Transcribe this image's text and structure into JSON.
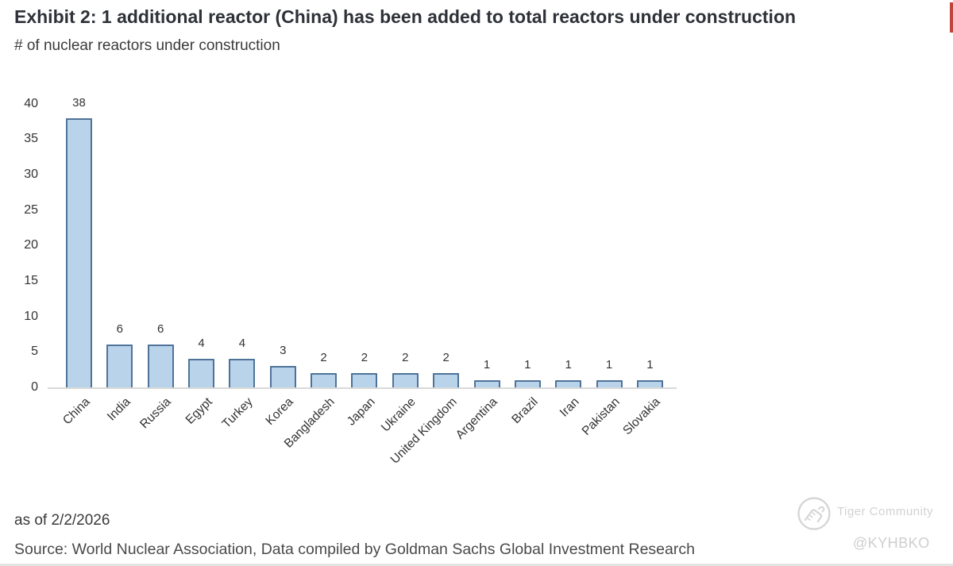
{
  "header": {
    "title": "Exhibit 2: 1 additional reactor (China) has been added to total reactors under construction",
    "subtitle": "# of nuclear reactors under construction"
  },
  "chart_data": {
    "type": "bar",
    "title": "Exhibit 2: 1 additional reactor (China) has been added to total reactors under construction",
    "subtitle": "# of nuclear reactors under construction",
    "categories": [
      "China",
      "India",
      "Russia",
      "Egypt",
      "Turkey",
      "Korea",
      "Bangladesh",
      "Japan",
      "Ukraine",
      "United Kingdom",
      "Argentina",
      "Brazil",
      "Iran",
      "Pakistan",
      "Slovakia"
    ],
    "values": [
      38,
      6,
      6,
      4,
      4,
      3,
      2,
      2,
      2,
      2,
      1,
      1,
      1,
      1,
      1
    ],
    "data_labels": [
      38,
      6,
      6,
      4,
      4,
      3,
      2,
      2,
      2,
      2,
      1,
      1,
      1,
      1,
      1
    ],
    "xlabel": "",
    "ylabel": "",
    "ylim": [
      0,
      40
    ],
    "yticks": [
      0,
      5,
      10,
      15,
      20,
      25,
      30,
      35,
      40
    ],
    "grid": false,
    "legend_position": "none",
    "bar_fill_color": "#b9d3eb",
    "bar_border_color": "#4f7398",
    "x_tick_label_rotation_deg": 45
  },
  "footer": {
    "as_of": "as of 2/2/2026",
    "source": "Source: World Nuclear Association, Data compiled by Goldman Sachs Global Investment Research"
  },
  "watermark": {
    "logo_icon": "tiger-community-logo-icon",
    "community_name": "Tiger Community",
    "handle": "@KYHBKO"
  },
  "colors": {
    "title_text": "#2e3138",
    "body_text": "#3a3a3a",
    "source_text": "#4a4a4a",
    "axis_line": "#d9d9d9",
    "tick_text": "#333333",
    "watermark_text": "#d2d2d2",
    "red_edge_strip": "#c0453f"
  }
}
